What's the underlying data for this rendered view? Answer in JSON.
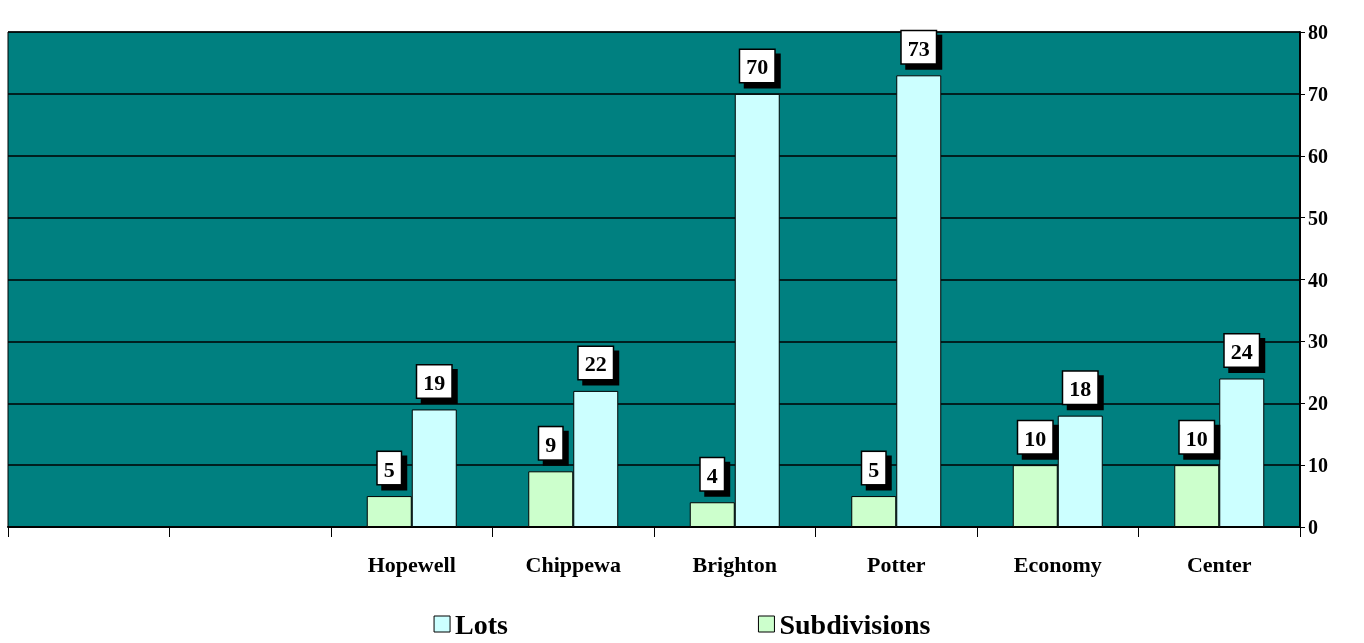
{
  "chart_data": {
    "type": "bar",
    "categories": [
      null,
      null,
      "Hopewell",
      "Chippewa",
      "Brighton",
      "Potter",
      "Economy",
      "Center"
    ],
    "series": [
      {
        "name": "Subdivisions",
        "color": "#ccffcc",
        "values": [
          null,
          null,
          5,
          9,
          4,
          5,
          10,
          10
        ]
      },
      {
        "name": "Lots",
        "color": "#ccffff",
        "values": [
          null,
          null,
          19,
          22,
          70,
          73,
          18,
          24
        ]
      }
    ],
    "ylim": [
      0,
      80
    ],
    "yticks": [
      0,
      10,
      20,
      30,
      40,
      50,
      60,
      70,
      80
    ],
    "grid": "y",
    "legend": "bottom",
    "data_labels": true
  }
}
